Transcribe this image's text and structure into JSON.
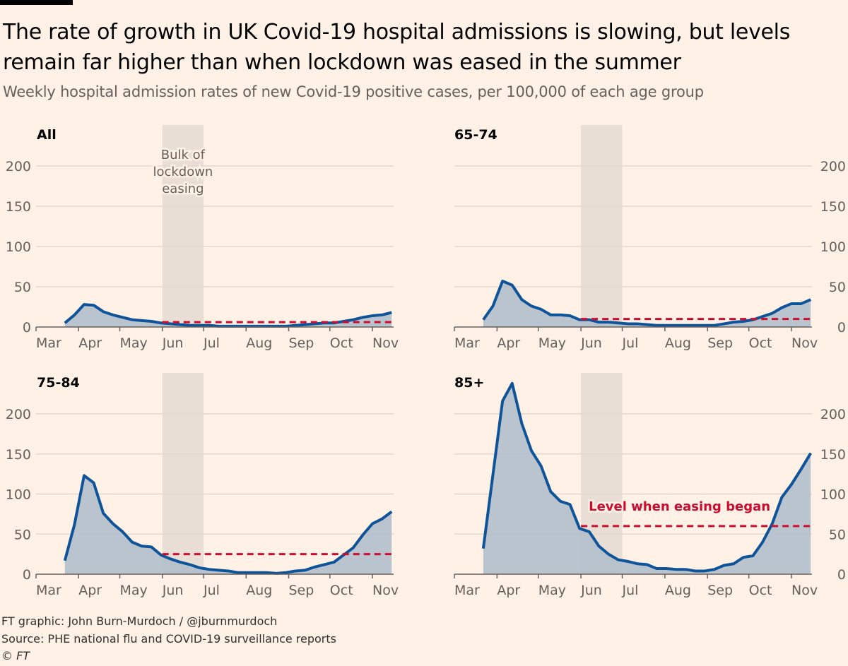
{
  "title": "The rate of growth in UK Covid-19 hospital admissions is slowing, but levels remain far higher than when lockdown was eased in the summer",
  "subtitle": "Weekly hospital admission rates of new Covid-19 positive cases, per 100,000 of each age group",
  "footer": {
    "credit": "FT graphic: John Burn-Murdoch / @jburnmurdoch",
    "source": "Source: PHE national flu and COVID-19 surveillance reports",
    "copyright": "© FT"
  },
  "colors": {
    "background": "#fff1e5",
    "line": "#0f5499",
    "area": "#b3bfcc",
    "band": "#e9ded5",
    "reference": "#cc0d2f",
    "grid": "#e3d8cf"
  },
  "chart_data": {
    "type": "area",
    "ylim": [
      0,
      200
    ],
    "yticks": [
      "0",
      "50",
      "100",
      "150",
      "200"
    ],
    "xticks": [
      "Mar",
      "Apr",
      "May",
      "Jun",
      "Jul",
      "Aug",
      "Sep",
      "Oct",
      "Nov"
    ],
    "xtick_dates": [
      "2020-03-01",
      "2020-04-01",
      "2020-05-01",
      "2020-06-01",
      "2020-07-01",
      "2020-08-01",
      "2020-09-01",
      "2020-10-01",
      "2020-11-01"
    ],
    "grid": true,
    "highlight_band": {
      "start": "2020-06-01",
      "end": "2020-07-01",
      "label": [
        "Bulk of",
        "lockdown",
        "easing"
      ]
    },
    "reference_label": "Level when easing began",
    "x": [
      "2020-03-22",
      "2020-03-29",
      "2020-04-05",
      "2020-04-12",
      "2020-04-19",
      "2020-04-26",
      "2020-05-03",
      "2020-05-10",
      "2020-05-17",
      "2020-05-24",
      "2020-05-31",
      "2020-06-07",
      "2020-06-14",
      "2020-06-21",
      "2020-06-28",
      "2020-07-05",
      "2020-07-12",
      "2020-07-19",
      "2020-07-26",
      "2020-08-02",
      "2020-08-09",
      "2020-08-16",
      "2020-08-23",
      "2020-08-30",
      "2020-09-06",
      "2020-09-13",
      "2020-09-20",
      "2020-09-27",
      "2020-10-04",
      "2020-10-11",
      "2020-10-18",
      "2020-10-25",
      "2020-11-01",
      "2020-11-08",
      "2020-11-15"
    ],
    "panels": [
      {
        "title": "All",
        "easing_level": 6,
        "values": [
          5,
          15,
          28,
          27,
          19,
          15,
          12,
          9,
          8,
          7,
          5,
          4,
          3,
          2,
          2,
          2,
          1,
          1,
          1,
          1,
          1,
          1,
          1,
          1,
          2,
          3,
          4,
          5,
          5,
          7,
          9,
          12,
          14,
          15,
          18
        ]
      },
      {
        "title": "65-74",
        "easing_level": 10,
        "values": [
          9,
          26,
          57,
          52,
          34,
          26,
          22,
          15,
          15,
          14,
          9,
          9,
          6,
          6,
          5,
          4,
          4,
          3,
          2,
          2,
          2,
          2,
          2,
          2,
          2,
          4,
          6,
          7,
          9,
          13,
          17,
          24,
          29,
          29,
          34
        ]
      },
      {
        "title": "75-84",
        "easing_level": 25,
        "values": [
          17,
          62,
          123,
          114,
          76,
          63,
          53,
          40,
          35,
          34,
          24,
          19,
          15,
          12,
          8,
          6,
          5,
          4,
          2,
          2,
          2,
          2,
          1,
          2,
          4,
          5,
          9,
          12,
          15,
          24,
          33,
          49,
          63,
          69,
          78
        ]
      },
      {
        "title": "85+",
        "easing_level": 60,
        "values": [
          32,
          124,
          216,
          238,
          188,
          154,
          135,
          103,
          91,
          87,
          57,
          53,
          35,
          25,
          18,
          16,
          13,
          12,
          7,
          7,
          6,
          6,
          4,
          4,
          6,
          11,
          13,
          21,
          23,
          40,
          63,
          96,
          112,
          131,
          151
        ]
      }
    ]
  }
}
